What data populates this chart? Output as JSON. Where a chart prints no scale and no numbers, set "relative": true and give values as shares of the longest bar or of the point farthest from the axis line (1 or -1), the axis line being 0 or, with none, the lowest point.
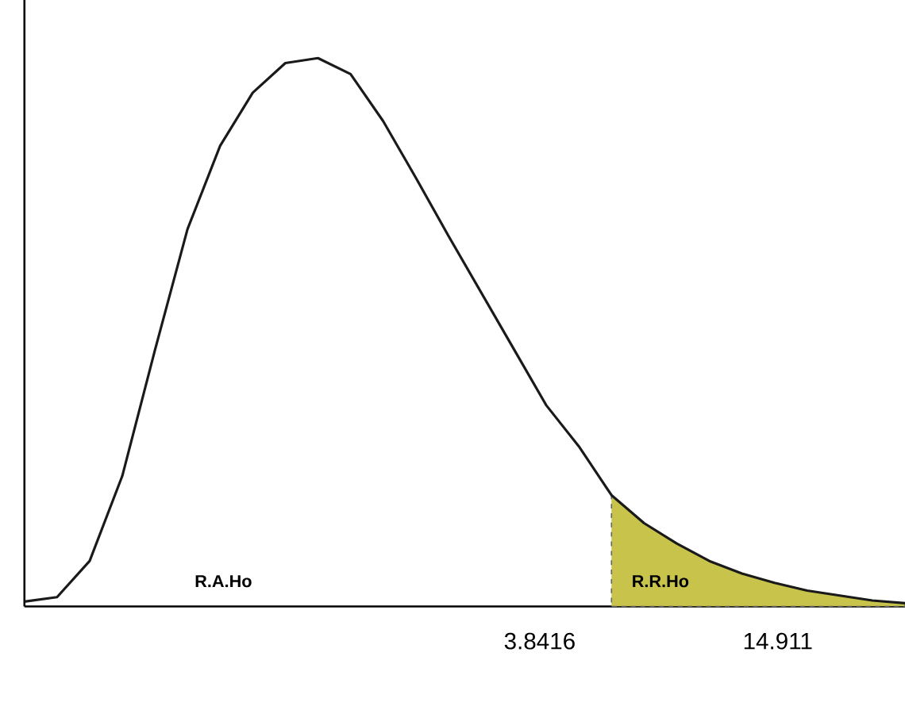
{
  "chart_data": {
    "type": "line",
    "relative": true,
    "categories": [
      null,
      null,
      null,
      null,
      null,
      null,
      null,
      null,
      null,
      null,
      null,
      null,
      null,
      null,
      null,
      null,
      null,
      null,
      null,
      null,
      null,
      null,
      null,
      null,
      null,
      null,
      null,
      null
    ],
    "series": [
      {
        "color": "#1a1a1a",
        "values": [
          0.009,
          0.017,
          0.083,
          0.238,
          0.467,
          0.688,
          0.84,
          0.937,
          0.991,
          1.0,
          0.971,
          0.885,
          0.782,
          0.676,
          0.573,
          0.47,
          0.367,
          0.292,
          0.203,
          0.152,
          0.115,
          0.083,
          0.06,
          0.043,
          0.029,
          0.02,
          0.011,
          0.006
        ]
      },
      {
        "type": "area",
        "color": "#c8c34a",
        "values": [
          null,
          null,
          null,
          null,
          null,
          null,
          null,
          null,
          null,
          null,
          null,
          null,
          null,
          null,
          null,
          null,
          null,
          null,
          0.203,
          0.152,
          0.115,
          0.083,
          0.06,
          0.043,
          0.029,
          0.02,
          0.011,
          0.006
        ]
      }
    ],
    "annotations": [
      "R.A.Ho",
      "R.R.Ho",
      "3.8416",
      "14.911"
    ]
  }
}
